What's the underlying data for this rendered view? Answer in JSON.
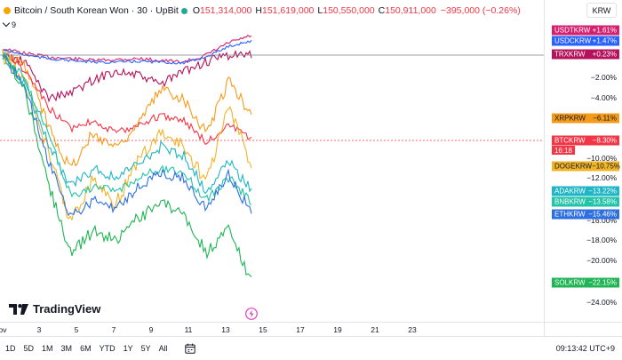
{
  "legend": {
    "title": "Bitcoin / South Korean Won · 30 · UpBit",
    "open_key": "O",
    "open_val": "151,314,000",
    "high_key": "H",
    "high_val": "151,619,000",
    "low_key": "L",
    "low_val": "150,550,000",
    "close_key": "C",
    "close_val": "150,911,000",
    "change": "−395,000 (−0.26%)",
    "collapse_count": "9",
    "status_color": "#22ab94"
  },
  "currency": "KRW",
  "price_axis": {
    "ticks": [
      "−2.00%",
      "−4.00%",
      "−8.00%",
      "−10.00%",
      "−12.00%",
      "−16.00%",
      "−18.00%",
      "−20.00%",
      "−24.00%"
    ]
  },
  "symbols": [
    {
      "name": "USDTKRW",
      "value": "+1.61%",
      "color": "#d6206d"
    },
    {
      "name": "USDCKRW",
      "value": "+1.47%",
      "color": "#2962ff"
    },
    {
      "name": "TRXKRW",
      "value": "+0.23%",
      "color": "#b5125b"
    },
    {
      "name": "XRPKRW",
      "value": "−6.11%",
      "color": "#f59b1a"
    },
    {
      "name": "BTCKRW",
      "value": "−8.30%",
      "color": "#f23645"
    },
    {
      "name": "DOGEKRW",
      "value": "−10.75%",
      "color": "#f0b428"
    },
    {
      "name": "ADAKRW",
      "value": "−13.22%",
      "color": "#1fb5c6"
    },
    {
      "name": "BNBKRW",
      "value": "−13.58%",
      "color": "#22c3a8"
    },
    {
      "name": "ETHKRW",
      "value": "−15.46%",
      "color": "#2e6fe0"
    },
    {
      "name": "SOLKRW",
      "value": "−22.15%",
      "color": "#1fb554"
    }
  ],
  "btc_timer": "16:18",
  "time_axis": [
    "ov",
    "3",
    "5",
    "7",
    "9",
    "11",
    "13",
    "15",
    "17",
    "19",
    "21",
    "23"
  ],
  "toolbar": {
    "ranges": [
      "1D",
      "5D",
      "1M",
      "3M",
      "6M",
      "YTD",
      "1Y",
      "5Y",
      "All"
    ],
    "clock": "09:13:42 UTC+9"
  },
  "logo_text": "TradingView",
  "icons": {
    "calendar": "calendar-icon",
    "event": "lightning-event-icon",
    "logo": "tradingview-logo-icon"
  }
}
